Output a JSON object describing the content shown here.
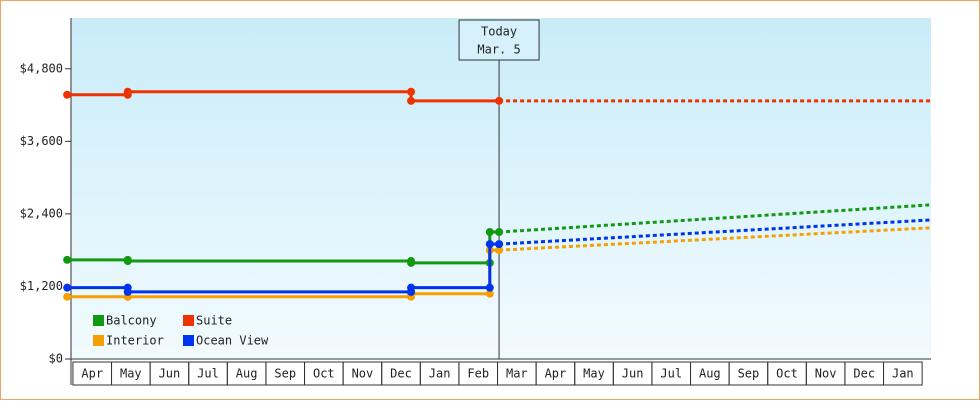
{
  "chart_data": {
    "type": "line",
    "categories": [
      "Apr",
      "May",
      "Jun",
      "Jul",
      "Aug",
      "Sep",
      "Oct",
      "Nov",
      "Dec",
      "Jan",
      "Feb",
      "Mar",
      "Apr",
      "May",
      "Jun",
      "Jul",
      "Aug",
      "Sep",
      "Oct",
      "Nov",
      "Dec",
      "Jan"
    ],
    "xlim": [
      -0.05,
      22.23
    ],
    "ylim": [
      0,
      5640
    ],
    "yticks": [
      {
        "value": 0,
        "label": "$0"
      },
      {
        "value": 1200,
        "label": "$1,200"
      },
      {
        "value": 2400,
        "label": "$2,400"
      },
      {
        "value": 3600,
        "label": "$3,600"
      },
      {
        "value": 4800,
        "label": "$4,800"
      }
    ],
    "today": {
      "x": 11.04,
      "label": [
        "Today",
        "Mar. 5"
      ]
    },
    "series": [
      {
        "name": "Balcony",
        "color": "#119911",
        "x": [
          -0.15,
          1.42,
          1.42,
          8.76,
          8.76,
          10.8,
          10.8,
          11.04
        ],
        "values": [
          1640,
          1640,
          1620,
          1620,
          1590,
          1590,
          2100,
          2100
        ],
        "forecast_x": [
          11.04,
          22.23
        ],
        "forecast_values": [
          2100,
          2550
        ]
      },
      {
        "name": "Suite",
        "color": "#ee3300",
        "x": [
          -0.15,
          1.42,
          1.42,
          8.76,
          8.76,
          11.04
        ],
        "values": [
          4370,
          4370,
          4420,
          4420,
          4270,
          4270
        ],
        "forecast_x": [
          11.04,
          22.23
        ],
        "forecast_values": [
          4270,
          4270
        ]
      },
      {
        "name": "Interior",
        "color": "#f5a000",
        "x": [
          -0.15,
          1.42,
          1.42,
          8.76,
          8.76,
          10.8,
          10.8,
          11.04
        ],
        "values": [
          1030,
          1030,
          1030,
          1030,
          1080,
          1080,
          1800,
          1800
        ],
        "forecast_x": [
          11.04,
          22.23
        ],
        "forecast_values": [
          1800,
          2170
        ]
      },
      {
        "name": "Ocean View",
        "color": "#0033ee",
        "x": [
          -0.15,
          1.42,
          1.42,
          8.76,
          8.76,
          10.8,
          10.8,
          11.04
        ],
        "values": [
          1180,
          1180,
          1110,
          1110,
          1180,
          1180,
          1900,
          1900
        ],
        "forecast_x": [
          11.04,
          22.23
        ],
        "forecast_values": [
          1900,
          2300
        ]
      }
    ]
  }
}
